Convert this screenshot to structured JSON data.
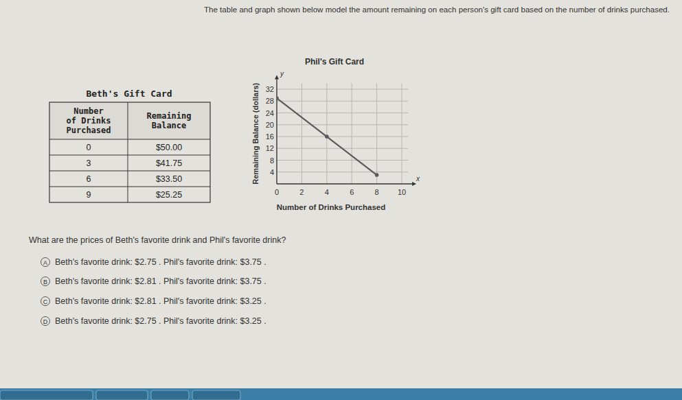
{
  "header": {
    "text": "The table and graph shown below model the amount remaining on each person's gift card based on the number of drinks purchased."
  },
  "table": {
    "title": "Beth's Gift Card",
    "columns": [
      [
        "Number",
        "of Drinks",
        "Purchased"
      ],
      [
        "Remaining",
        "Balance"
      ]
    ],
    "rows": [
      [
        "0",
        "$50.00"
      ],
      [
        "3",
        "$41.75"
      ],
      [
        "6",
        "$33.50"
      ],
      [
        "9",
        "$25.25"
      ]
    ]
  },
  "chart_data": {
    "type": "line",
    "title": "Phil's Gift Card",
    "x_label": "Number of Drinks Purchased",
    "y_label": "Remaining Balance (dollars)",
    "x_axis_symbol": "x",
    "y_axis_symbol": "y",
    "x": [
      0,
      4,
      8
    ],
    "values": [
      29,
      16,
      3
    ],
    "color": "#5a5a5a",
    "marker": "circle",
    "xlim": [
      0,
      10.5
    ],
    "ylim": [
      0,
      34
    ],
    "xticks": [
      0,
      2,
      4,
      6,
      8,
      10
    ],
    "yticks": [
      4,
      8,
      12,
      16,
      20,
      24,
      28,
      32
    ],
    "grid": true
  },
  "question": "What are the prices of Beth's favorite drink and Phil's favorite drink?",
  "options": [
    {
      "letter": "A",
      "text": "Beth's favorite drink: $2.75 .    Phil's favorite drink: $3.75 ."
    },
    {
      "letter": "B",
      "text": "Beth's favorite drink: $2.81 .    Phil's favorite drink: $3.75 ."
    },
    {
      "letter": "C",
      "text": "Beth's favorite drink: $2.81 .    Phil's favorite drink: $3.25 ."
    },
    {
      "letter": "D",
      "text": "Beth's favorite drink: $2.75 .    Phil's favorite drink: $3.25 ."
    }
  ]
}
